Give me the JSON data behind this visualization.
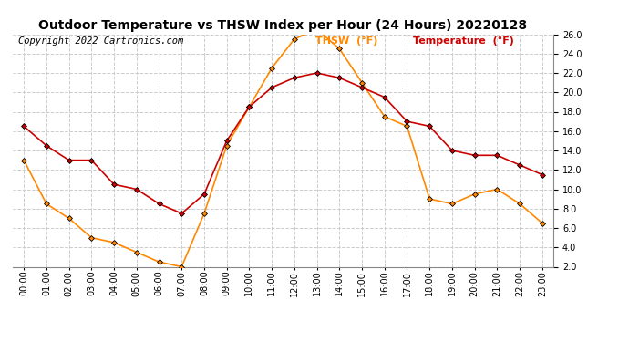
{
  "title": "Outdoor Temperature vs THSW Index per Hour (24 Hours) 20220128",
  "copyright": "Copyright 2022 Cartronics.com",
  "hours": [
    "00:00",
    "01:00",
    "02:00",
    "03:00",
    "04:00",
    "05:00",
    "06:00",
    "07:00",
    "08:00",
    "09:00",
    "10:00",
    "11:00",
    "12:00",
    "13:00",
    "14:00",
    "15:00",
    "16:00",
    "17:00",
    "18:00",
    "19:00",
    "20:00",
    "21:00",
    "22:00",
    "23:00"
  ],
  "temperature": [
    16.5,
    14.5,
    13.0,
    13.0,
    10.5,
    10.0,
    8.5,
    7.5,
    9.5,
    15.0,
    18.5,
    20.5,
    21.5,
    22.0,
    21.5,
    20.5,
    19.5,
    17.0,
    16.5,
    14.0,
    13.5,
    13.5,
    12.5,
    11.5
  ],
  "thsw": [
    13.0,
    8.5,
    7.0,
    5.0,
    4.5,
    3.5,
    2.5,
    2.0,
    7.5,
    14.5,
    18.5,
    22.5,
    25.5,
    26.5,
    24.5,
    21.0,
    17.5,
    16.5,
    9.0,
    8.5,
    9.5,
    10.0,
    8.5,
    6.5
  ],
  "temp_color": "#cc0000",
  "thsw_color": "#ff8800",
  "marker": "D",
  "marker_size": 3,
  "marker_color": "black",
  "ylim": [
    2.0,
    26.0
  ],
  "yticks": [
    2.0,
    4.0,
    6.0,
    8.0,
    10.0,
    12.0,
    14.0,
    16.0,
    18.0,
    20.0,
    22.0,
    24.0,
    26.0
  ],
  "grid_color": "#cccccc",
  "grid_style": "--",
  "bg_color": "#ffffff",
  "legend_thsw": "THSW  (°F)",
  "legend_temp": "Temperature  (°F)",
  "legend_thsw_color": "#ff8800",
  "legend_temp_color": "#cc0000",
  "title_fontsize": 10,
  "copyright_fontsize": 7.5,
  "axis_label_fontsize": 7,
  "legend_fontsize": 8
}
